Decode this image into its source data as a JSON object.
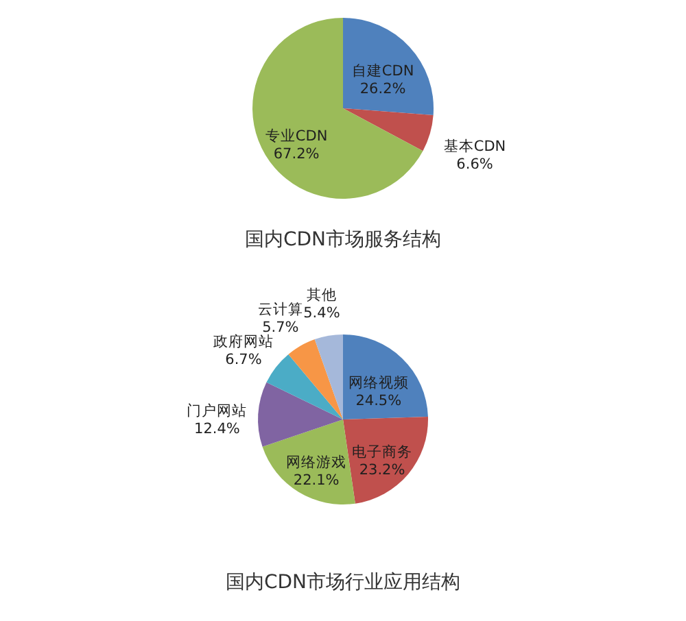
{
  "chart_data": [
    {
      "type": "pie",
      "title": "国内CDN市场服务结构",
      "categories": [
        "自建CDN",
        "基本CDN",
        "专业CDN"
      ],
      "values": [
        26.2,
        6.6,
        67.2
      ],
      "colors": [
        "#4f81bd",
        "#c0504d",
        "#9bbb59"
      ],
      "value_labels": [
        "26.2%",
        "6.6%",
        "67.2%"
      ]
    },
    {
      "type": "pie",
      "title": "国内CDN市场行业应用结构",
      "categories": [
        "网络视频",
        "电子商务",
        "网络游戏",
        "门户网站",
        "政府网站",
        "云计算",
        "其他"
      ],
      "values": [
        24.5,
        23.2,
        22.1,
        12.4,
        6.7,
        5.7,
        5.4
      ],
      "colors": [
        "#4f81bd",
        "#c0504d",
        "#9bbb59",
        "#8064a2",
        "#4bacc6",
        "#f79646",
        "#a5b8da"
      ],
      "value_labels": [
        "24.5%",
        "23.2%",
        "22.1%",
        "12.4%",
        "6.7%",
        "5.7%",
        "5.4%"
      ]
    }
  ]
}
